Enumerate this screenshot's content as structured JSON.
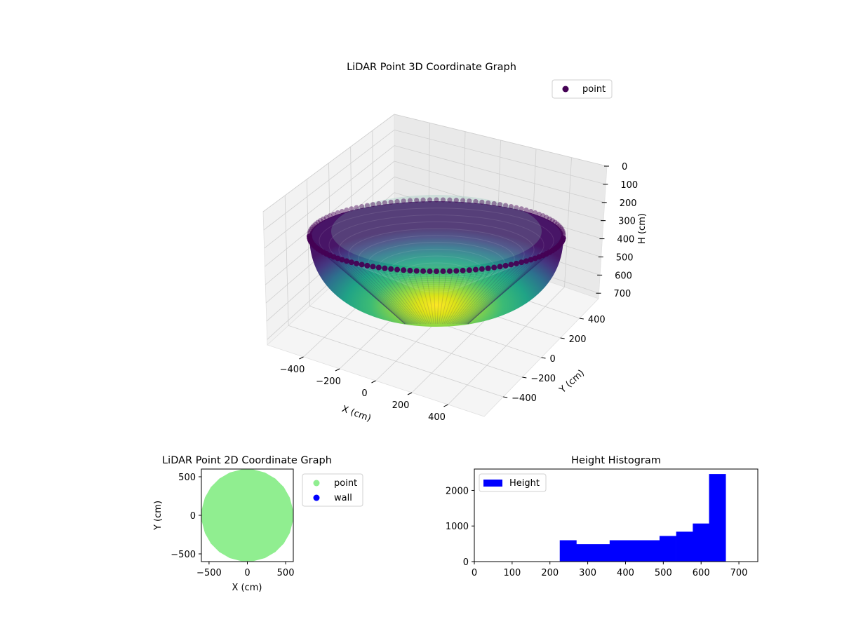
{
  "chart_data": [
    {
      "type": "scatter",
      "projection": "3d",
      "title": "LiDAR Point 3D Coordinate Graph",
      "xlabel": "X (cm)",
      "ylabel": "Y (cm)",
      "zlabel": "H (cm)",
      "xticks": [
        "−400",
        "−200",
        "0",
        "200",
        "400"
      ],
      "yticks": [
        "−400",
        "−200",
        "0",
        "200",
        "400"
      ],
      "zticks": [
        "0",
        "100",
        "200",
        "300",
        "400",
        "500",
        "600",
        "700"
      ],
      "xlim": [
        -600,
        600
      ],
      "ylim": [
        -600,
        600
      ],
      "zlim": [
        730,
        0
      ],
      "z_axis_inverted": true,
      "colormap": "viridis",
      "surface": "hemispherical bowl, rim at H≈0 cm, bottom at H≈660 cm, radius≈600 cm",
      "legend": {
        "entries": [
          "point"
        ],
        "location": "upper right",
        "marker_color": "#440154"
      },
      "grid": true
    },
    {
      "type": "scatter",
      "title": "LiDAR Point 2D Coordinate Graph",
      "xlabel": "X (cm)",
      "ylabel": "Y (cm)",
      "xticks": [
        "−500",
        "0",
        "500"
      ],
      "yticks": [
        "−500",
        "0",
        "500"
      ],
      "xlim": [
        -600,
        600
      ],
      "ylim": [
        -600,
        600
      ],
      "series": [
        {
          "name": "point",
          "color": "#90ee90",
          "shape": "filled polygon (24-gon), radius≈600 cm"
        },
        {
          "name": "wall",
          "color": "#0000ff",
          "shape": "none visible"
        }
      ],
      "legend": {
        "location": "outside right",
        "entries": [
          "point",
          "wall"
        ]
      },
      "grid": false
    },
    {
      "type": "bar",
      "title": "Height Histogram",
      "xlabel": "",
      "ylabel": "",
      "xticks": [
        "0",
        "100",
        "200",
        "300",
        "400",
        "500",
        "600",
        "700"
      ],
      "yticks": [
        "0",
        "1000",
        "2000"
      ],
      "xlim": [
        0,
        750
      ],
      "ylim": [
        0,
        2600
      ],
      "bar_color": "#0000ff",
      "bins": [
        {
          "x0": 226,
          "x1": 270,
          "count": 600
        },
        {
          "x0": 270,
          "x1": 358,
          "count": 490
        },
        {
          "x0": 358,
          "x1": 490,
          "count": 600
        },
        {
          "x0": 490,
          "x1": 534,
          "count": 720
        },
        {
          "x0": 534,
          "x1": 578,
          "count": 840
        },
        {
          "x0": 578,
          "x1": 621,
          "count": 1070
        },
        {
          "x0": 621,
          "x1": 665,
          "count": 2460
        }
      ],
      "legend": {
        "entries": [
          "Height"
        ],
        "location": "upper left"
      }
    }
  ]
}
